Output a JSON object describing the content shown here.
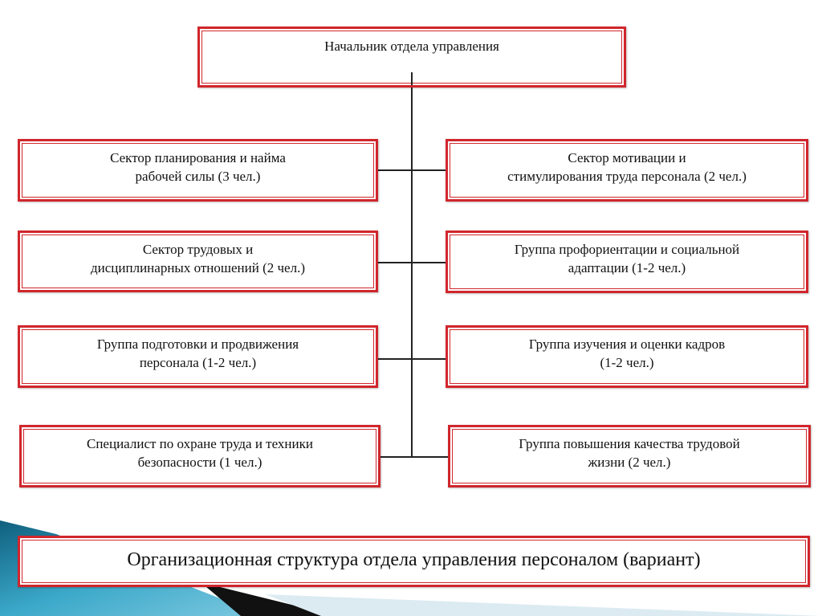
{
  "head": {
    "label": "Начальник отдела управления"
  },
  "left_units": [
    {
      "label": "Сектор планирования и найма\nрабочей силы (3 чел.)"
    },
    {
      "label": "Сектор  трудовых               и\nдисциплинарных отношений (2 чел.)"
    },
    {
      "label": "Группа подготовки и продвижения\nперсонала (1-2 чел.)"
    },
    {
      "label": "Специалист по охране труда и техники\nбезопасности (1 чел.)"
    }
  ],
  "right_units": [
    {
      "label": "Сектор мотивации                    и\nстимулирования труда персонала (2 чел.)"
    },
    {
      "label": "Группа профориентации и социальной\nадаптации (1-2 чел.)"
    },
    {
      "label": "Группа изучения и оценки кадров\n(1-2 чел.)"
    },
    {
      "label": "Группа повышения качества трудовой\nжизни (2 чел.)"
    }
  ],
  "caption": "Организационная структура отдела управления персоналом (вариант)",
  "colors": {
    "border": "#d0262c",
    "accent": "#1f7fa3"
  }
}
